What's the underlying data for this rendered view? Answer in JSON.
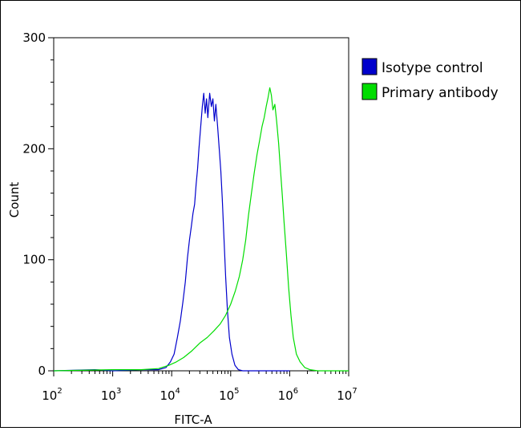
{
  "chart_data": {
    "type": "line",
    "title": "",
    "xlabel": "FITC-A",
    "ylabel": "Count",
    "x_scale": "log",
    "xlim": [
      100,
      10000000
    ],
    "ylim": [
      0,
      300
    ],
    "x_ticks": [
      {
        "value": 100,
        "base": "10",
        "exp": "2"
      },
      {
        "value": 1000,
        "base": "10",
        "exp": "3"
      },
      {
        "value": 10000,
        "base": "10",
        "exp": "4"
      },
      {
        "value": 100000,
        "base": "10",
        "exp": "5"
      },
      {
        "value": 1000000,
        "base": "10",
        "exp": "6"
      },
      {
        "value": 10000000,
        "base": "10",
        "exp": "7"
      }
    ],
    "y_ticks": [
      "0",
      "100",
      "200",
      "300"
    ],
    "legend_position": "top-right",
    "series": [
      {
        "name": "Isotype control",
        "color": "#0000cc",
        "points": [
          [
            100,
            0
          ],
          [
            500,
            1
          ],
          [
            1000,
            0
          ],
          [
            3000,
            1
          ],
          [
            6000,
            1
          ],
          [
            8000,
            3
          ],
          [
            9500,
            8
          ],
          [
            11000,
            15
          ],
          [
            12500,
            30
          ],
          [
            14000,
            45
          ],
          [
            15500,
            62
          ],
          [
            17000,
            80
          ],
          [
            18500,
            102
          ],
          [
            20000,
            118
          ],
          [
            21500,
            130
          ],
          [
            23000,
            142
          ],
          [
            24500,
            150
          ],
          [
            26000,
            168
          ],
          [
            27500,
            182
          ],
          [
            29000,
            200
          ],
          [
            31000,
            220
          ],
          [
            33000,
            238
          ],
          [
            35000,
            250
          ],
          [
            37000,
            232
          ],
          [
            39000,
            245
          ],
          [
            41000,
            228
          ],
          [
            44000,
            250
          ],
          [
            47000,
            238
          ],
          [
            50000,
            245
          ],
          [
            53000,
            225
          ],
          [
            56000,
            240
          ],
          [
            60000,
            220
          ],
          [
            64000,
            200
          ],
          [
            68000,
            180
          ],
          [
            72000,
            155
          ],
          [
            77000,
            120
          ],
          [
            82000,
            85
          ],
          [
            88000,
            55
          ],
          [
            95000,
            30
          ],
          [
            105000,
            15
          ],
          [
            118000,
            5
          ],
          [
            135000,
            1
          ],
          [
            160000,
            0
          ],
          [
            1000000,
            0
          ]
        ]
      },
      {
        "name": "Primary antibody",
        "color": "#00dd00",
        "points": [
          [
            100,
            0
          ],
          [
            1000,
            1
          ],
          [
            3000,
            1
          ],
          [
            6000,
            2
          ],
          [
            9000,
            5
          ],
          [
            12000,
            8
          ],
          [
            16000,
            12
          ],
          [
            22000,
            18
          ],
          [
            30000,
            25
          ],
          [
            40000,
            30
          ],
          [
            52000,
            36
          ],
          [
            66000,
            42
          ],
          [
            82000,
            50
          ],
          [
            100000,
            60
          ],
          [
            120000,
            72
          ],
          [
            140000,
            85
          ],
          [
            160000,
            100
          ],
          [
            180000,
            118
          ],
          [
            200000,
            140
          ],
          [
            225000,
            160
          ],
          [
            250000,
            178
          ],
          [
            280000,
            195
          ],
          [
            310000,
            208
          ],
          [
            340000,
            220
          ],
          [
            370000,
            228
          ],
          [
            400000,
            238
          ],
          [
            430000,
            246
          ],
          [
            460000,
            255
          ],
          [
            490000,
            248
          ],
          [
            520000,
            235
          ],
          [
            560000,
            240
          ],
          [
            600000,
            225
          ],
          [
            650000,
            205
          ],
          [
            700000,
            180
          ],
          [
            750000,
            158
          ],
          [
            800000,
            135
          ],
          [
            880000,
            105
          ],
          [
            960000,
            75
          ],
          [
            1050000,
            50
          ],
          [
            1150000,
            30
          ],
          [
            1300000,
            15
          ],
          [
            1500000,
            8
          ],
          [
            1800000,
            3
          ],
          [
            2200000,
            1
          ],
          [
            3000000,
            0
          ],
          [
            10000000,
            0
          ]
        ]
      }
    ]
  }
}
